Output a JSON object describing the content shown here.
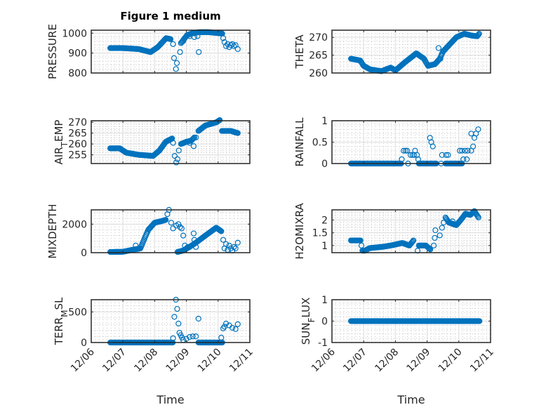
{
  "figure": {
    "title": "Figure 1 medium",
    "marker_color": "#0072BD"
  },
  "chart_data": {
    "type": "scatter",
    "x_axis": {
      "label": "Time",
      "ticks": [
        0,
        1,
        2,
        3,
        4,
        5
      ],
      "tick_labels": [
        "12/06",
        "12/07",
        "12/08",
        "12/09",
        "12/10",
        "12/11"
      ],
      "xlim": [
        0,
        5
      ],
      "units": "days since 12/06 00:00"
    },
    "grid": "major+minor",
    "panels": [
      {
        "name": "PRESSURE",
        "ylabel_parts": [
          {
            "t": "PRESSURE"
          }
        ],
        "ylim": [
          800,
          1015
        ],
        "yticks": [
          800,
          900,
          1000
        ],
        "ytick_labels": [
          "800",
          "900",
          "1000"
        ],
        "curves": [
          [
            [
              0.6,
              925
            ],
            [
              1.0,
              925
            ],
            [
              1.5,
              920
            ],
            [
              1.87,
              905
            ],
            [
              2.1,
              930
            ],
            [
              2.36,
              975
            ],
            [
              2.5,
              970
            ]
          ],
          [
            [
              2.83,
              950
            ],
            [
              3.02,
              990
            ],
            [
              3.2,
              1000
            ],
            [
              3.4,
              1005
            ],
            [
              3.7,
              1005
            ],
            [
              4.13,
              998
            ]
          ]
        ],
        "extra": [
          [
            2.58,
            945
          ],
          [
            2.61,
            875
          ],
          [
            2.7,
            850
          ],
          [
            2.67,
            820
          ],
          [
            2.8,
            905
          ],
          [
            2.9,
            960
          ],
          [
            3.1,
            985
          ],
          [
            3.25,
            980
          ],
          [
            3.35,
            985
          ],
          [
            3.39,
            905
          ],
          [
            4.16,
            975
          ],
          [
            4.2,
            955
          ],
          [
            4.25,
            935
          ],
          [
            4.3,
            945
          ],
          [
            4.35,
            930
          ],
          [
            4.4,
            940
          ],
          [
            4.45,
            945
          ],
          [
            4.5,
            935
          ],
          [
            4.55,
            940
          ],
          [
            4.62,
            920
          ]
        ]
      },
      {
        "name": "THETA",
        "ylabel_parts": [
          {
            "t": "THETA"
          }
        ],
        "ylim": [
          260,
          272
        ],
        "yticks": [
          260,
          265,
          270
        ],
        "ytick_labels": [
          "260",
          "265",
          "270"
        ],
        "curves": [
          [
            [
              0.6,
              264
            ],
            [
              0.89,
              263.5
            ],
            [
              1.0,
              262
            ],
            [
              1.2,
              261
            ],
            [
              1.56,
              260.5
            ],
            [
              1.85,
              261.5
            ],
            [
              2.0,
              260.7
            ],
            [
              2.3,
              263
            ],
            [
              2.66,
              265.5
            ],
            [
              2.9,
              264
            ],
            [
              3.03,
              262
            ],
            [
              3.25,
              262.5
            ],
            [
              3.4,
              264
            ],
            [
              3.5,
              266
            ],
            [
              3.92,
              270
            ],
            [
              4.17,
              271
            ],
            [
              4.4,
              270.5
            ],
            [
              4.58,
              270.3
            ],
            [
              4.64,
              271
            ]
          ]
        ],
        "extra": [
          [
            3.36,
            267
          ],
          [
            3.42,
            264
          ]
        ]
      },
      {
        "name": "AIR_TEMP",
        "ylabel_parts": [
          {
            "t": "AIR"
          },
          {
            "t": "T",
            "sub": true
          },
          {
            "t": "EMP"
          }
        ],
        "ylim": [
          251,
          270.7
        ],
        "yticks": [
          255,
          260,
          265,
          270
        ],
        "ytick_labels": [
          "255",
          "260",
          "265",
          "270"
        ],
        "curves": [
          [
            [
              0.6,
              258
            ],
            [
              0.9,
              258
            ],
            [
              1.1,
              256
            ],
            [
              1.5,
              255
            ],
            [
              1.95,
              254.5
            ],
            [
              2.15,
              257
            ],
            [
              2.35,
              261
            ],
            [
              2.55,
              262.5
            ]
          ],
          [
            [
              2.83,
              260
            ],
            [
              3.0,
              261
            ],
            [
              3.15,
              261.5
            ],
            [
              3.25,
              263
            ]
          ],
          [
            [
              3.38,
              266
            ],
            [
              3.6,
              268.5
            ],
            [
              3.95,
              270
            ],
            [
              4.05,
              271
            ]
          ],
          [
            [
              4.12,
              266
            ],
            [
              4.4,
              266
            ],
            [
              4.62,
              265
            ]
          ]
        ],
        "extra": [
          [
            2.58,
            260.5
          ],
          [
            2.63,
            254.5
          ],
          [
            2.68,
            251.5
          ],
          [
            2.72,
            253
          ],
          [
            2.76,
            257
          ],
          [
            3.23,
            259
          ],
          [
            3.1,
            260.5
          ],
          [
            3.3,
            263
          ]
        ]
      },
      {
        "name": "RAINFALL",
        "ylabel_parts": [
          {
            "t": "RAINFALL"
          }
        ],
        "ylim": [
          0,
          1
        ],
        "yticks": [
          0,
          0.5,
          1
        ],
        "ytick_labels": [
          "0",
          "0.5",
          "1"
        ],
        "curves": [
          [
            [
              0.6,
              0
            ],
            [
              2.18,
              0
            ]
          ],
          [
            [
              2.74,
              0
            ],
            [
              3.29,
              0
            ]
          ],
          [
            [
              3.58,
              0
            ],
            [
              4.1,
              0
            ]
          ]
        ],
        "extra": [
          [
            2.2,
            0.1
          ],
          [
            2.26,
            0.3
          ],
          [
            2.32,
            0.3
          ],
          [
            2.37,
            0.3
          ],
          [
            2.4,
            0
          ],
          [
            2.48,
            0.2
          ],
          [
            2.54,
            0.2
          ],
          [
            2.59,
            0.2
          ],
          [
            2.62,
            0.3
          ],
          [
            2.68,
            0.2
          ],
          [
            2.72,
            0.1
          ],
          [
            3.09,
            0.6
          ],
          [
            3.13,
            0.5
          ],
          [
            3.18,
            0.4
          ],
          [
            3.44,
            0
          ],
          [
            3.47,
            0.2
          ],
          [
            3.6,
            0.2
          ],
          [
            3.66,
            0.2
          ],
          [
            4.03,
            0.3
          ],
          [
            4.1,
            0.3
          ],
          [
            4.14,
            0.1
          ],
          [
            4.2,
            0.3
          ],
          [
            4.25,
            0.1
          ],
          [
            4.28,
            0.3
          ],
          [
            4.39,
            0.3
          ],
          [
            4.39,
            0.7
          ],
          [
            4.45,
            0.4
          ],
          [
            4.49,
            0.6
          ],
          [
            4.54,
            0.7
          ],
          [
            4.61,
            0.8
          ]
        ]
      },
      {
        "name": "MIXDEPTH",
        "ylabel_parts": [
          {
            "t": "MIXDEPTH"
          }
        ],
        "ylim": [
          0,
          3000
        ],
        "yticks": [
          0,
          2000
        ],
        "ytick_labels": [
          "0",
          "2000"
        ],
        "curves": [
          [
            [
              0.6,
              50
            ],
            [
              1.0,
              60
            ],
            [
              1.3,
              200
            ],
            [
              1.55,
              300
            ],
            [
              1.7,
              1100
            ],
            [
              1.8,
              1600
            ],
            [
              2.0,
              2100
            ],
            [
              2.2,
              2200
            ],
            [
              2.35,
              2300
            ]
          ],
          [
            [
              2.72,
              50
            ],
            [
              2.9,
              150
            ],
            [
              3.1,
              400
            ],
            [
              3.3,
              700
            ],
            [
              3.6,
              1200
            ],
            [
              3.94,
              1750
            ],
            [
              4.1,
              1500
            ]
          ]
        ],
        "extra": [
          [
            1.4,
            500
          ],
          [
            2.4,
            2700
          ],
          [
            2.45,
            3000
          ],
          [
            2.52,
            2100
          ],
          [
            2.58,
            1700
          ],
          [
            2.68,
            1900
          ],
          [
            2.75,
            2000
          ],
          [
            2.8,
            1800
          ],
          [
            2.85,
            1700
          ],
          [
            2.9,
            1200
          ],
          [
            2.95,
            500
          ],
          [
            3.0,
            300
          ],
          [
            3.05,
            400
          ],
          [
            3.23,
            1350
          ],
          [
            3.3,
            400
          ],
          [
            3.25,
            900
          ],
          [
            4.16,
            900
          ],
          [
            4.2,
            300
          ],
          [
            4.25,
            600
          ],
          [
            4.3,
            200
          ],
          [
            4.35,
            500
          ],
          [
            4.4,
            300
          ],
          [
            4.45,
            150
          ],
          [
            4.5,
            400
          ],
          [
            4.55,
            300
          ],
          [
            4.62,
            700
          ]
        ]
      },
      {
        "name": "H2OMIXRA",
        "ylabel_parts": [
          {
            "t": "H2OMIXRA"
          }
        ],
        "ylim": [
          0.72,
          2.4
        ],
        "yticks": [
          1,
          1.5,
          2
        ],
        "ytick_labels": [
          "1",
          "1.5",
          "2"
        ],
        "curves": [
          [
            [
              0.6,
              1.2
            ],
            [
              0.9,
              1.2
            ]
          ],
          [
            [
              0.96,
              0.8
            ],
            [
              1.04,
              0.8
            ],
            [
              1.19,
              0.9
            ],
            [
              1.6,
              0.95
            ],
            [
              1.85,
              1.0
            ],
            [
              2.22,
              1.1
            ],
            [
              2.44,
              1.0
            ],
            [
              2.57,
              1.2
            ]
          ],
          [
            [
              2.74,
              1.0
            ],
            [
              2.96,
              1.0
            ],
            [
              3.1,
              0.85
            ]
          ],
          [
            [
              3.58,
              2.1
            ],
            [
              3.69,
              1.9
            ],
            [
              3.92,
              1.8
            ],
            [
              4.06,
              2.0
            ],
            [
              4.21,
              2.25
            ],
            [
              4.36,
              2.2
            ],
            [
              4.49,
              2.35
            ],
            [
              4.62,
              2.1
            ]
          ]
        ],
        "extra": [
          [
            0.93,
            1.0
          ],
          [
            2.7,
            0.8
          ],
          [
            3.21,
            1.0
          ],
          [
            3.24,
            1.3
          ],
          [
            3.26,
            1.6
          ],
          [
            3.4,
            1.4
          ],
          [
            3.47,
            1.7
          ],
          [
            3.52,
            1.9
          ],
          [
            3.8,
            1.95
          ]
        ]
      },
      {
        "name": "TERR_MSL",
        "ylabel_parts": [
          {
            "t": "TERR"
          },
          {
            "t": "M",
            "sub": true
          },
          {
            "t": "SL"
          }
        ],
        "ylim": [
          0,
          700
        ],
        "yticks": [
          0,
          500
        ],
        "ytick_labels": [
          "0",
          "500"
        ],
        "curves": [
          [
            [
              0.6,
              0
            ],
            [
              2.57,
              0
            ]
          ],
          [
            [
              3.38,
              0
            ],
            [
              4.13,
              0
            ]
          ]
        ],
        "extra": [
          [
            2.58,
            70
          ],
          [
            2.62,
            420
          ],
          [
            2.67,
            700
          ],
          [
            2.71,
            550
          ],
          [
            2.75,
            310
          ],
          [
            2.78,
            160
          ],
          [
            2.82,
            120
          ],
          [
            2.86,
            80
          ],
          [
            2.9,
            40
          ],
          [
            3.0,
            60
          ],
          [
            3.1,
            90
          ],
          [
            3.2,
            100
          ],
          [
            3.38,
            390
          ],
          [
            3.3,
            100
          ],
          [
            4.1,
            80
          ],
          [
            4.16,
            230
          ],
          [
            4.2,
            260
          ],
          [
            4.25,
            310
          ],
          [
            4.35,
            280
          ],
          [
            4.45,
            240
          ],
          [
            4.55,
            220
          ],
          [
            4.62,
            300
          ]
        ]
      },
      {
        "name": "SUN_FLUX",
        "ylabel_parts": [
          {
            "t": "SUN"
          },
          {
            "t": "F",
            "sub": true
          },
          {
            "t": "LUX"
          }
        ],
        "ylim": [
          -1,
          1
        ],
        "yticks": [
          -1,
          0,
          1
        ],
        "ytick_labels": [
          "-1",
          "0",
          "1"
        ],
        "curves": [
          [
            [
              0.6,
              0
            ],
            [
              4.65,
              0
            ]
          ]
        ],
        "extra": []
      }
    ]
  }
}
